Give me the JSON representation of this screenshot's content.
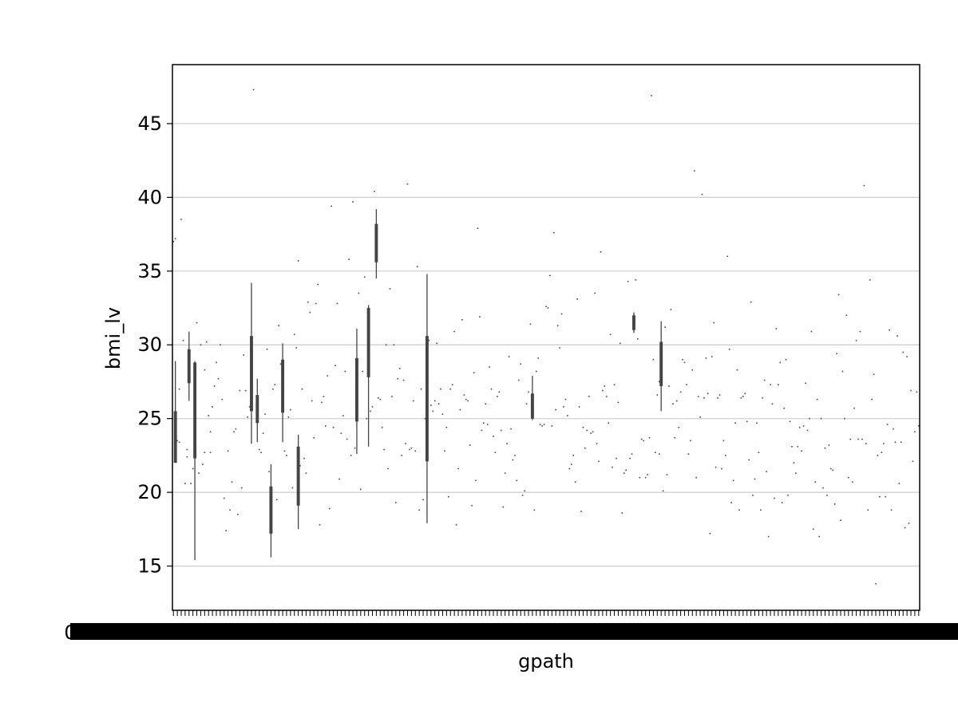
{
  "chart_data": {
    "type": "box",
    "title": "",
    "xlabel": "gpath",
    "ylabel": "bmi_lv",
    "ylim": [
      12.0,
      49.0
    ],
    "yticks": [
      15,
      20,
      25,
      30,
      35,
      40,
      45
    ],
    "grid": "horizontal",
    "x_tick_labels": "0",
    "x_tick_label_count": "many overlapping labels",
    "colors": {
      "box": "#444444",
      "grid": "#cccccc",
      "spine": "#000000"
    },
    "boxes": [
      {
        "pos": 1,
        "low": 22.0,
        "q1": 22.0,
        "q3": 25.5,
        "high": 28.9
      },
      {
        "pos": 8,
        "low": 26.2,
        "q1": 27.4,
        "q3": 29.7,
        "high": 30.9
      },
      {
        "pos": 11,
        "low": 15.4,
        "q1": 22.3,
        "q3": 28.8,
        "high": 28.9
      },
      {
        "pos": 40,
        "low": 23.3,
        "q1": 25.5,
        "q3": 30.6,
        "high": 34.2
      },
      {
        "pos": 43,
        "low": 23.4,
        "q1": 24.7,
        "q3": 26.6,
        "high": 27.7
      },
      {
        "pos": 50,
        "low": 15.6,
        "q1": 17.2,
        "q3": 20.4,
        "high": 21.9
      },
      {
        "pos": 56,
        "low": 23.4,
        "q1": 25.4,
        "q3": 29.0,
        "high": 30.1
      },
      {
        "pos": 64,
        "low": 17.5,
        "q1": 19.1,
        "q3": 23.1,
        "high": 23.9
      },
      {
        "pos": 94,
        "low": 22.6,
        "q1": 24.8,
        "q3": 29.1,
        "high": 31.1
      },
      {
        "pos": 100,
        "low": 23.1,
        "q1": 27.8,
        "q3": 32.5,
        "high": 32.7
      },
      {
        "pos": 104,
        "low": 34.5,
        "q1": 35.6,
        "q3": 38.2,
        "high": 39.2
      },
      {
        "pos": 130,
        "low": 17.9,
        "q1": 22.1,
        "q3": 30.6,
        "high": 34.8
      },
      {
        "pos": 184,
        "low": 24.9,
        "q1": 25.0,
        "q3": 26.7,
        "high": 27.9
      },
      {
        "pos": 236,
        "low": 30.8,
        "q1": 31.0,
        "q3": 32.0,
        "high": 32.2
      },
      {
        "pos": 250,
        "low": 25.5,
        "q1": 27.2,
        "q3": 30.2,
        "high": 31.6
      }
    ],
    "singles": [
      [
        0,
        37.0
      ],
      [
        1,
        37.2
      ],
      [
        2,
        23.5
      ],
      [
        3,
        23.4
      ],
      [
        3,
        27.0
      ],
      [
        4,
        38.5
      ],
      [
        5,
        30.3
      ],
      [
        6,
        20.6
      ],
      [
        7,
        22.9
      ],
      [
        7,
        22.4
      ],
      [
        9,
        20.6
      ],
      [
        10,
        21.6
      ],
      [
        12,
        31.5
      ],
      [
        13,
        21.3
      ],
      [
        14,
        30.0
      ],
      [
        15,
        21.9
      ],
      [
        16,
        22.7
      ],
      [
        16,
        28.3
      ],
      [
        17,
        30.2
      ],
      [
        18,
        25.2
      ],
      [
        19,
        24.1
      ],
      [
        19,
        22.7
      ],
      [
        20,
        25.8
      ],
      [
        21,
        27.2
      ],
      [
        22,
        28.8
      ],
      [
        23,
        27.7
      ],
      [
        24,
        30.0
      ],
      [
        25,
        26.3
      ],
      [
        26,
        19.6
      ],
      [
        27,
        17.4
      ],
      [
        28,
        22.8
      ],
      [
        29,
        18.8
      ],
      [
        30,
        20.7
      ],
      [
        31,
        24.1
      ],
      [
        32,
        24.3
      ],
      [
        33,
        18.5
      ],
      [
        34,
        26.9
      ],
      [
        35,
        20.3
      ],
      [
        36,
        29.3
      ],
      [
        37,
        26.9
      ],
      [
        38,
        25.1
      ],
      [
        39,
        25.8
      ],
      [
        41,
        47.3
      ],
      [
        44,
        22.9
      ],
      [
        45,
        22.7
      ],
      [
        46,
        24.0
      ],
      [
        47,
        25.3
      ],
      [
        48,
        29.7
      ],
      [
        49,
        21.4
      ],
      [
        51,
        27.0
      ],
      [
        52,
        27.3
      ],
      [
        53,
        19.5
      ],
      [
        54,
        31.3
      ],
      [
        55,
        28.7
      ],
      [
        57,
        22.8
      ],
      [
        58,
        22.5
      ],
      [
        59,
        25.1
      ],
      [
        60,
        25.6
      ],
      [
        61,
        20.3
      ],
      [
        62,
        30.7
      ],
      [
        63,
        29.8
      ],
      [
        64,
        35.7
      ],
      [
        65,
        21.8
      ],
      [
        66,
        27.0
      ],
      [
        67,
        22.3
      ],
      [
        68,
        21.3
      ],
      [
        69,
        32.9
      ],
      [
        70,
        32.2
      ],
      [
        71,
        26.2
      ],
      [
        72,
        23.7
      ],
      [
        73,
        32.8
      ],
      [
        74,
        34.1
      ],
      [
        75,
        17.8
      ],
      [
        76,
        26.1
      ],
      [
        77,
        26.5
      ],
      [
        78,
        24.5
      ],
      [
        79,
        27.9
      ],
      [
        80,
        18.9
      ],
      [
        81,
        39.4
      ],
      [
        82,
        24.4
      ],
      [
        83,
        28.6
      ],
      [
        84,
        32.8
      ],
      [
        85,
        20.9
      ],
      [
        86,
        24.0
      ],
      [
        87,
        25.2
      ],
      [
        88,
        28.2
      ],
      [
        89,
        23.6
      ],
      [
        90,
        35.8
      ],
      [
        91,
        22.5
      ],
      [
        92,
        39.7
      ],
      [
        93,
        23.0
      ],
      [
        95,
        33.5
      ],
      [
        96,
        20.2
      ],
      [
        97,
        28.2
      ],
      [
        98,
        34.6
      ],
      [
        99,
        25.0
      ],
      [
        101,
        25.5
      ],
      [
        102,
        25.8
      ],
      [
        103,
        40.4
      ],
      [
        105,
        26.4
      ],
      [
        106,
        26.3
      ],
      [
        107,
        24.4
      ],
      [
        108,
        22.9
      ],
      [
        109,
        30.0
      ],
      [
        110,
        21.6
      ],
      [
        111,
        33.8
      ],
      [
        112,
        26.5
      ],
      [
        113,
        30.0
      ],
      [
        114,
        19.3
      ],
      [
        115,
        27.7
      ],
      [
        116,
        28.4
      ],
      [
        117,
        22.5
      ],
      [
        118,
        27.6
      ],
      [
        119,
        23.3
      ],
      [
        120,
        40.9
      ],
      [
        121,
        22.9
      ],
      [
        122,
        23.0
      ],
      [
        123,
        26.2
      ],
      [
        124,
        22.8
      ],
      [
        125,
        35.3
      ],
      [
        126,
        18.8
      ],
      [
        127,
        27.0
      ],
      [
        128,
        19.5
      ],
      [
        129,
        25.0
      ],
      [
        131,
        30.3
      ],
      [
        132,
        25.9
      ],
      [
        133,
        25.5
      ],
      [
        134,
        26.2
      ],
      [
        135,
        30.1
      ],
      [
        136,
        26.0
      ],
      [
        137,
        27.0
      ],
      [
        138,
        25.3
      ],
      [
        139,
        22.8
      ],
      [
        140,
        24.4
      ],
      [
        141,
        19.7
      ],
      [
        142,
        27.0
      ],
      [
        143,
        27.3
      ],
      [
        144,
        30.9
      ],
      [
        145,
        17.8
      ],
      [
        146,
        21.6
      ],
      [
        147,
        25.6
      ],
      [
        148,
        31.7
      ],
      [
        149,
        26.6
      ],
      [
        150,
        26.3
      ],
      [
        151,
        26.2
      ],
      [
        152,
        23.2
      ],
      [
        153,
        19.1
      ],
      [
        154,
        28.1
      ],
      [
        155,
        20.8
      ],
      [
        156,
        37.9
      ],
      [
        157,
        31.9
      ],
      [
        158,
        24.2
      ],
      [
        159,
        24.7
      ],
      [
        160,
        26.0
      ],
      [
        161,
        24.6
      ],
      [
        162,
        28.5
      ],
      [
        163,
        27.0
      ],
      [
        164,
        23.8
      ],
      [
        165,
        22.7
      ],
      [
        166,
        26.5
      ],
      [
        167,
        26.8
      ],
      [
        168,
        24.2
      ],
      [
        169,
        19.0
      ],
      [
        170,
        21.3
      ],
      [
        171,
        23.3
      ],
      [
        172,
        29.2
      ],
      [
        173,
        24.3
      ],
      [
        174,
        22.2
      ],
      [
        175,
        22.5
      ],
      [
        176,
        20.8
      ],
      [
        177,
        27.6
      ],
      [
        178,
        28.7
      ],
      [
        179,
        19.8
      ],
      [
        180,
        20.1
      ],
      [
        181,
        26.0
      ],
      [
        182,
        26.8
      ],
      [
        183,
        31.4
      ],
      [
        185,
        18.8
      ],
      [
        186,
        28.2
      ],
      [
        187,
        29.1
      ],
      [
        188,
        24.6
      ],
      [
        189,
        24.5
      ],
      [
        190,
        24.6
      ],
      [
        191,
        32.6
      ],
      [
        192,
        32.5
      ],
      [
        193,
        34.7
      ],
      [
        194,
        24.5
      ],
      [
        195,
        37.6
      ],
      [
        196,
        25.6
      ],
      [
        197,
        31.3
      ],
      [
        198,
        29.8
      ],
      [
        199,
        32.1
      ],
      [
        200,
        25.8
      ],
      [
        201,
        26.3
      ],
      [
        202,
        25.2
      ],
      [
        203,
        21.6
      ],
      [
        204,
        21.9
      ],
      [
        205,
        22.5
      ],
      [
        206,
        20.7
      ],
      [
        207,
        33.1
      ],
      [
        208,
        25.8
      ],
      [
        209,
        18.7
      ],
      [
        210,
        24.4
      ],
      [
        211,
        23.0
      ],
      [
        212,
        24.2
      ],
      [
        213,
        26.5
      ],
      [
        214,
        24.0
      ],
      [
        215,
        24.1
      ],
      [
        216,
        33.5
      ],
      [
        217,
        23.3
      ],
      [
        218,
        22.1
      ],
      [
        219,
        36.3
      ],
      [
        220,
        26.9
      ],
      [
        221,
        27.2
      ],
      [
        222,
        26.5
      ],
      [
        223,
        24.7
      ],
      [
        224,
        30.7
      ],
      [
        225,
        21.7
      ],
      [
        226,
        27.3
      ],
      [
        227,
        22.3
      ],
      [
        228,
        26.1
      ],
      [
        229,
        30.1
      ],
      [
        230,
        18.6
      ],
      [
        231,
        21.3
      ],
      [
        232,
        21.5
      ],
      [
        233,
        34.3
      ],
      [
        234,
        22.3
      ],
      [
        235,
        22.6
      ],
      [
        237,
        34.4
      ],
      [
        238,
        30.4
      ],
      [
        239,
        21.0
      ],
      [
        240,
        23.6
      ],
      [
        241,
        23.5
      ],
      [
        242,
        21.0
      ],
      [
        243,
        21.2
      ],
      [
        244,
        23.7
      ],
      [
        245,
        46.9
      ],
      [
        246,
        29.0
      ],
      [
        247,
        22.7
      ],
      [
        248,
        26.6
      ],
      [
        249,
        27.5
      ],
      [
        249,
        22.6
      ],
      [
        251,
        20.1
      ],
      [
        252,
        31.2
      ],
      [
        253,
        21.2
      ],
      [
        254,
        27.2
      ],
      [
        255,
        32.4
      ],
      [
        256,
        26.0
      ],
      [
        257,
        23.7
      ],
      [
        258,
        26.2
      ],
      [
        259,
        24.4
      ],
      [
        260,
        26.8
      ],
      [
        261,
        29.0
      ],
      [
        262,
        28.8
      ],
      [
        263,
        27.3
      ],
      [
        264,
        22.6
      ],
      [
        265,
        23.5
      ],
      [
        266,
        28.3
      ],
      [
        267,
        41.8
      ],
      [
        268,
        21.0
      ],
      [
        269,
        26.5
      ],
      [
        270,
        25.1
      ],
      [
        271,
        40.2
      ],
      [
        272,
        26.4
      ],
      [
        273,
        29.1
      ],
      [
        274,
        26.7
      ],
      [
        275,
        17.2
      ],
      [
        276,
        29.2
      ],
      [
        277,
        31.5
      ],
      [
        278,
        21.7
      ],
      [
        279,
        26.4
      ],
      [
        280,
        26.6
      ],
      [
        281,
        21.6
      ],
      [
        282,
        23.5
      ],
      [
        283,
        22.5
      ],
      [
        284,
        36.0
      ],
      [
        285,
        29.7
      ],
      [
        286,
        19.3
      ],
      [
        287,
        20.8
      ],
      [
        288,
        24.7
      ],
      [
        289,
        28.3
      ],
      [
        290,
        18.8
      ],
      [
        291,
        26.4
      ],
      [
        292,
        26.5
      ],
      [
        293,
        26.7
      ],
      [
        294,
        24.8
      ],
      [
        295,
        22.2
      ],
      [
        296,
        32.9
      ],
      [
        297,
        19.8
      ],
      [
        298,
        20.9
      ],
      [
        299,
        24.7
      ],
      [
        300,
        22.7
      ],
      [
        301,
        18.8
      ],
      [
        302,
        26.4
      ],
      [
        303,
        27.6
      ],
      [
        304,
        21.4
      ],
      [
        305,
        17.0
      ],
      [
        306,
        27.3
      ],
      [
        307,
        26.0
      ],
      [
        308,
        19.6
      ],
      [
        309,
        31.1
      ],
      [
        310,
        27.3
      ],
      [
        311,
        28.8
      ],
      [
        312,
        19.3
      ],
      [
        313,
        25.7
      ],
      [
        314,
        29.0
      ],
      [
        315,
        19.8
      ],
      [
        316,
        24.8
      ],
      [
        317,
        23.1
      ],
      [
        318,
        22.0
      ],
      [
        319,
        21.3
      ],
      [
        320,
        23.1
      ],
      [
        321,
        24.4
      ],
      [
        322,
        22.8
      ],
      [
        323,
        24.5
      ],
      [
        324,
        27.4
      ],
      [
        325,
        24.2
      ],
      [
        326,
        25.0
      ],
      [
        327,
        30.9
      ],
      [
        328,
        17.5
      ],
      [
        329,
        20.7
      ],
      [
        330,
        26.3
      ],
      [
        331,
        17.0
      ],
      [
        332,
        25.0
      ],
      [
        333,
        20.3
      ],
      [
        334,
        23.0
      ],
      [
        335,
        19.8
      ],
      [
        336,
        23.2
      ],
      [
        337,
        21.6
      ],
      [
        338,
        21.5
      ],
      [
        339,
        19.2
      ],
      [
        340,
        29.4
      ],
      [
        341,
        33.4
      ],
      [
        342,
        18.1
      ],
      [
        343,
        28.2
      ],
      [
        344,
        25.0
      ],
      [
        345,
        32.0
      ],
      [
        346,
        21.0
      ],
      [
        347,
        23.6
      ],
      [
        348,
        20.7
      ],
      [
        349,
        25.7
      ],
      [
        350,
        30.3
      ],
      [
        351,
        23.6
      ],
      [
        352,
        30.9
      ],
      [
        353,
        23.6
      ],
      [
        354,
        40.8
      ],
      [
        355,
        23.3
      ],
      [
        356,
        18.8
      ],
      [
        357,
        34.4
      ],
      [
        358,
        26.3
      ],
      [
        359,
        28.0
      ],
      [
        360,
        13.8
      ],
      [
        361,
        22.5
      ],
      [
        362,
        19.7
      ],
      [
        363,
        22.7
      ],
      [
        364,
        23.3
      ],
      [
        365,
        19.7
      ],
      [
        366,
        24.6
      ],
      [
        367,
        31.0
      ],
      [
        368,
        18.8
      ],
      [
        369,
        24.3
      ],
      [
        370,
        23.4
      ],
      [
        371,
        30.6
      ],
      [
        372,
        20.6
      ],
      [
        373,
        23.4
      ],
      [
        374,
        29.5
      ],
      [
        375,
        17.6
      ],
      [
        376,
        29.2
      ],
      [
        377,
        17.9
      ],
      [
        378,
        26.9
      ],
      [
        379,
        22.1
      ],
      [
        380,
        24.1
      ],
      [
        381,
        26.8
      ],
      [
        382,
        24.5
      ]
    ]
  }
}
